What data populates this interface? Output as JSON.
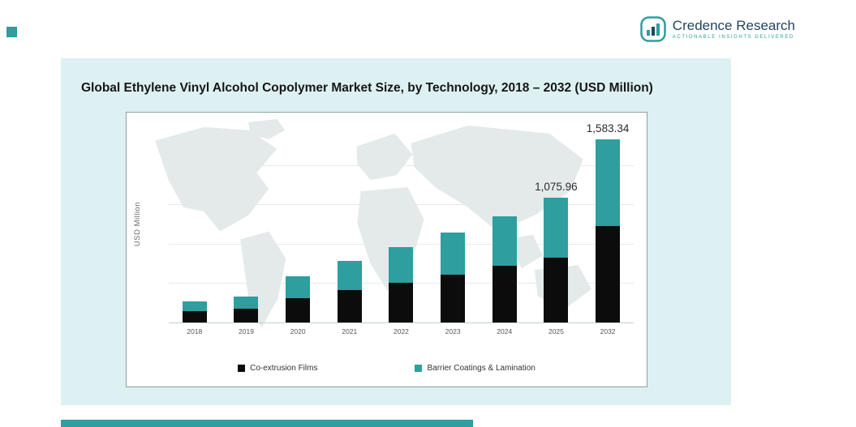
{
  "logo": {
    "brand": "Credence Research",
    "tagline": "Actionable Insights Delivered",
    "accent_color": "#2e9e9e",
    "brand_color": "#24455c"
  },
  "panel": {
    "background": "#ddf1f2"
  },
  "chart_data": {
    "type": "bar",
    "stacked": true,
    "title": "Global Ethylene Vinyl Alcohol Copolymer Market Size, by Technology, 2018 – 2032 (USD Million)",
    "xlabel": "",
    "ylabel": "USD Million",
    "categories": [
      "2018",
      "2019",
      "2020",
      "2021",
      "2022",
      "2023",
      "2024",
      "2025",
      "2032"
    ],
    "series": [
      {
        "name": "Co-extrusion Films",
        "color": "#0c0c0c",
        "values": [
          100,
          120,
          210,
          280,
          340,
          410,
          490,
          560,
          830
        ]
      },
      {
        "name": "Barrier Coatings & Lamination",
        "color": "#2e9e9e",
        "values": [
          85,
          105,
          190,
          250,
          310,
          370,
          430,
          515.96,
          753.34
        ]
      }
    ],
    "totals_labels": [
      "",
      "",
      "",
      "",
      "",
      "",
      "",
      "1,075.96",
      "1,583.34"
    ],
    "ylim": [
      0,
      1700
    ],
    "grid": true,
    "legend_position": "bottom",
    "background_decoration": "faint world map"
  }
}
